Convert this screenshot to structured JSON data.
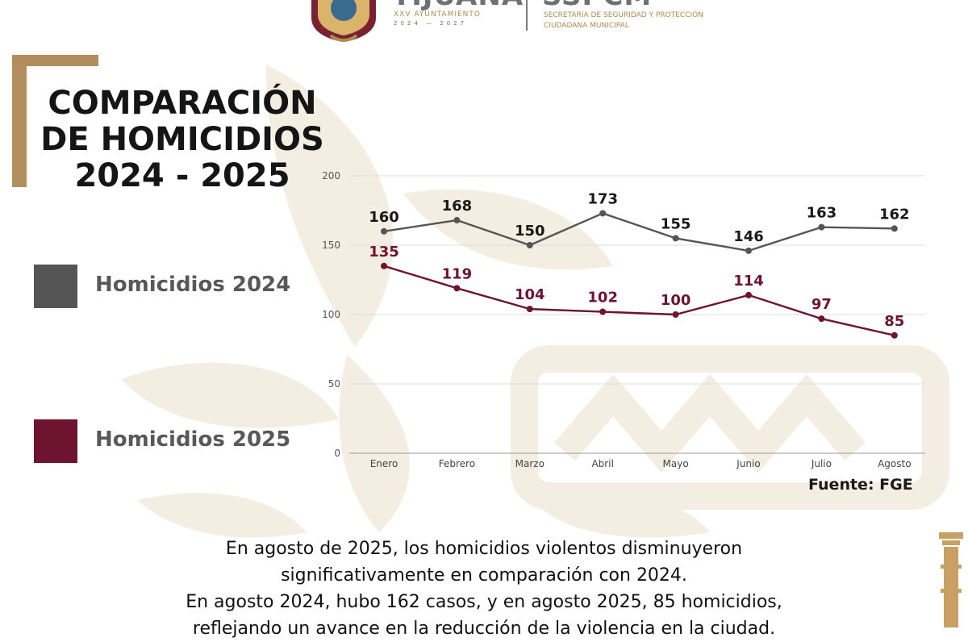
{
  "header": {
    "brand_primary": "TIJUANA",
    "brand_primary_sub": "XXV AYUNTAMIENTO",
    "brand_primary_years": "2024 — 2027",
    "brand_secondary": "SSPCM",
    "brand_secondary_sub": "SECRETARÍA DE SEGURIDAD Y PROTECCIÓN CIUDADANA MUNICIPAL"
  },
  "title_lines": [
    "COMPARACIÓN",
    "DE HOMICIDIOS",
    "2024 - 2025"
  ],
  "legend": [
    {
      "label": "Homicidios 2024",
      "color": "#555555"
    },
    {
      "label": "Homicidios 2025",
      "color": "#6e1431"
    }
  ],
  "source": "Fuente: FGE",
  "body_lines": [
    "En agosto de 2025, los homicidios violentos disminuyeron",
    "significativamente en comparación con 2024.",
    "En agosto 2024, hubo 162 casos, y en agosto 2025, 85 homicidios,",
    "reflejando un avance en la reducción de la violencia en la ciudad."
  ],
  "colors": {
    "accent_gold": "#b38e5d",
    "series_2024": "#555555",
    "series_2025": "#6e1431",
    "watermark": "#f4ede2"
  },
  "chart_data": {
    "type": "line",
    "title": "",
    "xlabel": "",
    "ylabel": "",
    "categories": [
      "Enero",
      "Febrero",
      "Marzo",
      "Abril",
      "Mayo",
      "Junio",
      "Julio",
      "Agosto"
    ],
    "ylim": [
      0,
      200
    ],
    "yticks": [
      0,
      50,
      100,
      150,
      200
    ],
    "grid": true,
    "legend_position": "left",
    "series": [
      {
        "name": "Homicidios 2024",
        "color": "#555555",
        "values": [
          160,
          168,
          150,
          173,
          155,
          146,
          163,
          162
        ]
      },
      {
        "name": "Homicidios 2025",
        "color": "#6e1431",
        "values": [
          135,
          119,
          104,
          102,
          100,
          114,
          97,
          85
        ]
      }
    ]
  }
}
